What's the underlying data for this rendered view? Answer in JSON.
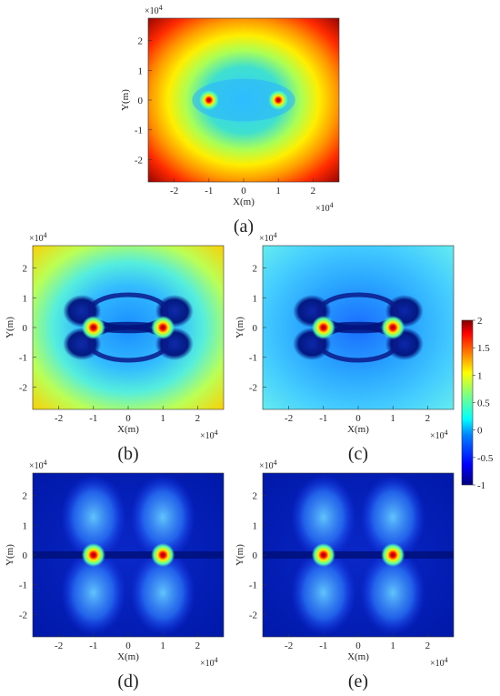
{
  "colors": {
    "colormap": [
      "#00007f",
      "#0000ff",
      "#007fff",
      "#00ffff",
      "#7fff7f",
      "#ffff00",
      "#ff7f00",
      "#ff0000",
      "#7f0000"
    ]
  },
  "chart_data": [
    {
      "type": "heatmap",
      "panel": "(a)",
      "xlabel": "X(m)",
      "ylabel": "Y(m)",
      "x_exponent_base": "×10",
      "x_exponent_power": "4",
      "y_exponent_base": "×10",
      "y_exponent_power": "4",
      "xlim": [
        -2.75,
        2.75
      ],
      "ylim": [
        -2.75,
        2.75
      ],
      "xticks": [
        "-2",
        "-1",
        "0",
        "1",
        "2"
      ],
      "yticks": [
        "2",
        "1",
        "0",
        "-1",
        "-2"
      ],
      "sources": [
        {
          "x": -1,
          "y": 0
        },
        {
          "x": 1,
          "y": 0
        }
      ],
      "pattern": "rounded-ellipse halo; low near sources, rising to max at corners"
    },
    {
      "type": "heatmap",
      "panel": "(b)",
      "xlabel": "X(m)",
      "ylabel": "Y(m)",
      "x_exponent_base": "×10",
      "x_exponent_power": "4",
      "y_exponent_base": "×10",
      "y_exponent_power": "4",
      "xlim": [
        -2.75,
        2.75
      ],
      "ylim": [
        -2.75,
        2.75
      ],
      "xticks": [
        "-2",
        "-1",
        "0",
        "1",
        "2"
      ],
      "yticks": [
        "2",
        "1",
        "0",
        "-1",
        "-2"
      ],
      "sources": [
        {
          "x": -1,
          "y": 0
        },
        {
          "x": 1,
          "y": 0
        }
      ],
      "pattern": "dark bow-tie lobes around sources, yellow-green toward edges"
    },
    {
      "type": "heatmap",
      "panel": "(c)",
      "xlabel": "X(m)",
      "ylabel": "Y(m)",
      "x_exponent_base": "×10",
      "x_exponent_power": "4",
      "y_exponent_base": "×10",
      "y_exponent_power": "4",
      "xlim": [
        -2.75,
        2.75
      ],
      "ylim": [
        -2.75,
        2.75
      ],
      "xticks": [
        "-2",
        "-1",
        "0",
        "1",
        "2"
      ],
      "yticks": [
        "2",
        "1",
        "0",
        "-1",
        "-2"
      ],
      "sources": [
        {
          "x": -1,
          "y": 0
        },
        {
          "x": 1,
          "y": 0
        }
      ],
      "pattern": "dark bow-tie lobes, cyan background"
    },
    {
      "type": "heatmap",
      "panel": "(d)",
      "xlabel": "X(m)",
      "ylabel": "Y(m)",
      "x_exponent_base": "×10",
      "x_exponent_power": "4",
      "y_exponent_base": "×10",
      "y_exponent_power": "4",
      "xlim": [
        -2.75,
        2.75
      ],
      "ylim": [
        -2.75,
        2.75
      ],
      "xticks": [
        "-2",
        "-1",
        "0",
        "1",
        "2"
      ],
      "yticks": [
        "2",
        "1",
        "0",
        "-1",
        "-2"
      ],
      "sources": [
        {
          "x": -1,
          "y": 0
        },
        {
          "x": 1,
          "y": 0
        }
      ],
      "pattern": "vertical light-blue fans through sources on dark blue background"
    },
    {
      "type": "heatmap",
      "panel": "(e)",
      "xlabel": "X(m)",
      "ylabel": "Y(m)",
      "x_exponent_base": "×10",
      "x_exponent_power": "4",
      "y_exponent_base": "×10",
      "y_exponent_power": "4",
      "xlim": [
        -2.75,
        2.75
      ],
      "ylim": [
        -2.75,
        2.75
      ],
      "xticks": [
        "-2",
        "-1",
        "0",
        "1",
        "2"
      ],
      "yticks": [
        "2",
        "1",
        "0",
        "-1",
        "-2"
      ],
      "sources": [
        {
          "x": -1,
          "y": 0
        },
        {
          "x": 1,
          "y": 0
        }
      ],
      "pattern": "vertical light-blue fans through sources on dark blue background"
    }
  ],
  "colorbar": {
    "ticks": [
      "2",
      "1.5",
      "1",
      "0.5",
      "0",
      "-0.5",
      "-1"
    ],
    "range": [
      -1,
      2
    ]
  }
}
